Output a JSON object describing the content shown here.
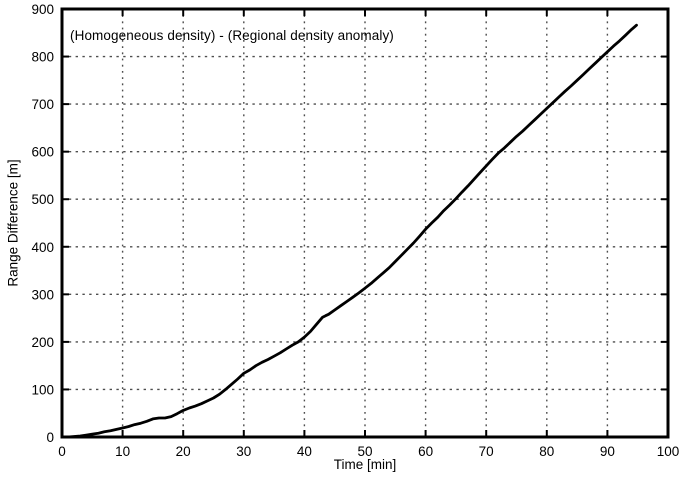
{
  "chart_data": {
    "type": "line",
    "annotation": "(Homogeneous density) - (Regional density anomaly)",
    "xlabel": "Time [min]",
    "ylabel": "Range Difference [m]",
    "xlim": [
      0,
      100
    ],
    "ylim": [
      0,
      900
    ],
    "x_ticks": [
      0,
      10,
      20,
      30,
      40,
      50,
      60,
      70,
      80,
      90,
      100
    ],
    "y_ticks": [
      0,
      100,
      200,
      300,
      400,
      500,
      600,
      700,
      800,
      900
    ],
    "grid": "dotted",
    "legend": "none",
    "line_color": "#000000",
    "grid_color": "#4d4d4d",
    "frame_color": "#000000",
    "series": [
      {
        "name": "range-difference",
        "x": [
          0,
          1,
          2,
          3,
          4,
          5,
          6,
          7,
          8,
          9,
          10,
          11,
          12,
          13,
          14,
          15,
          16,
          17,
          18,
          19,
          20,
          21,
          22,
          23,
          24,
          25,
          26,
          27,
          28,
          29,
          30,
          31,
          32,
          33,
          34,
          35,
          36,
          37,
          38,
          39,
          40,
          41,
          42,
          43,
          43.5,
          44,
          45,
          46,
          47,
          48,
          49,
          50,
          51,
          52,
          53,
          54,
          55,
          56,
          57,
          58,
          59,
          60,
          61,
          62,
          63,
          64,
          65,
          66,
          67,
          68,
          69,
          70,
          71,
          72,
          73,
          74,
          75,
          76,
          77,
          78,
          79,
          80,
          81,
          82,
          83,
          84,
          85,
          86,
          87,
          88,
          89,
          90,
          91,
          92,
          93,
          94,
          94.8
        ],
        "y": [
          0,
          0,
          1,
          2,
          4,
          6,
          8,
          11,
          13,
          16,
          19,
          22,
          26,
          29,
          33,
          38,
          40,
          40,
          43,
          49,
          56,
          61,
          65,
          70,
          76,
          82,
          90,
          100,
          111,
          122,
          134,
          141,
          150,
          157,
          163,
          170,
          177,
          185,
          193,
          200,
          210,
          222,
          237,
          252,
          255,
          258,
          267,
          276,
          285,
          294,
          303,
          313,
          323,
          334,
          345,
          356,
          369,
          382,
          395,
          408,
          422,
          437,
          450,
          462,
          476,
          488,
          501,
          515,
          528,
          542,
          556,
          570,
          584,
          597,
          608,
          620,
          632,
          643,
          655,
          667,
          679,
          691,
          703,
          715,
          727,
          738,
          750,
          762,
          774,
          786,
          798,
          810,
          822,
          833,
          845,
          857,
          866
        ]
      }
    ]
  }
}
